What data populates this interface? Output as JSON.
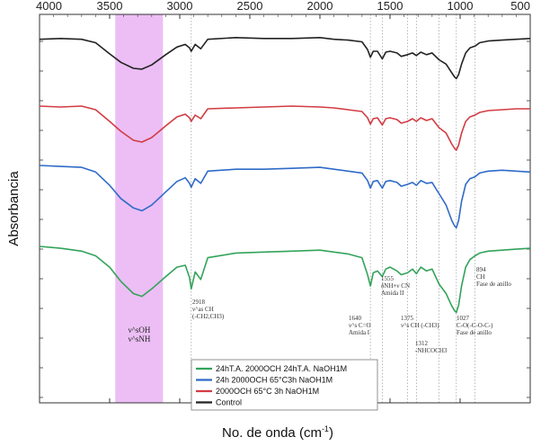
{
  "chart_data": {
    "type": "line",
    "title": "",
    "xlabel": "No. de onda (cm",
    "xlabel_sup": "-1",
    "xlabel_close": ")",
    "ylabel": "Absorbancia",
    "xlim": [
      4000,
      500
    ],
    "x_ticks": [
      "4000",
      "3500",
      "3000",
      "2500",
      "2000",
      "1500",
      "1000",
      "500"
    ],
    "x_tick_values": [
      4000,
      3500,
      3000,
      2500,
      2000,
      1500,
      1000,
      500
    ],
    "highlight_band": {
      "from": 3460,
      "to": 3120,
      "color": "#ecbef5"
    },
    "ref_lines": [
      2918,
      1640,
      1555,
      1375,
      1312,
      1150,
      1027,
      894
    ],
    "series": [
      {
        "name": "Control",
        "color": "#222222",
        "offset": 0.06,
        "points": [
          [
            4000,
            0.06
          ],
          [
            3850,
            0.05
          ],
          [
            3700,
            0.06
          ],
          [
            3600,
            0.1
          ],
          [
            3500,
            0.23
          ],
          [
            3420,
            0.33
          ],
          [
            3330,
            0.4
          ],
          [
            3270,
            0.41
          ],
          [
            3200,
            0.36
          ],
          [
            3100,
            0.24
          ],
          [
            3020,
            0.15
          ],
          [
            2960,
            0.12
          ],
          [
            2930,
            0.16
          ],
          [
            2918,
            0.2
          ],
          [
            2890,
            0.12
          ],
          [
            2850,
            0.17
          ],
          [
            2800,
            0.06
          ],
          [
            2600,
            0.04
          ],
          [
            2400,
            0.05
          ],
          [
            2200,
            0.05
          ],
          [
            2000,
            0.04
          ],
          [
            1900,
            0.06
          ],
          [
            1800,
            0.07
          ],
          [
            1700,
            0.09
          ],
          [
            1660,
            0.18
          ],
          [
            1640,
            0.27
          ],
          [
            1620,
            0.2
          ],
          [
            1590,
            0.2
          ],
          [
            1555,
            0.29
          ],
          [
            1530,
            0.21
          ],
          [
            1500,
            0.2
          ],
          [
            1450,
            0.22
          ],
          [
            1420,
            0.26
          ],
          [
            1375,
            0.24
          ],
          [
            1340,
            0.22
          ],
          [
            1312,
            0.25
          ],
          [
            1280,
            0.21
          ],
          [
            1240,
            0.24
          ],
          [
            1200,
            0.22
          ],
          [
            1150,
            0.3
          ],
          [
            1100,
            0.35
          ],
          [
            1060,
            0.45
          ],
          [
            1040,
            0.5
          ],
          [
            1027,
            0.52
          ],
          [
            1010,
            0.47
          ],
          [
            990,
            0.35
          ],
          [
            960,
            0.22
          ],
          [
            930,
            0.16
          ],
          [
            894,
            0.14
          ],
          [
            860,
            0.1
          ],
          [
            800,
            0.08
          ],
          [
            700,
            0.07
          ],
          [
            600,
            0.06
          ],
          [
            500,
            0.05
          ]
        ]
      },
      {
        "name": "2000OCH 65°C 3h NaOH1M",
        "color": "#d23c43",
        "offset": 0.0,
        "points": [
          [
            4000,
            0.0
          ],
          [
            3850,
            0.01
          ],
          [
            3700,
            0.0
          ],
          [
            3600,
            0.04
          ],
          [
            3500,
            0.17
          ],
          [
            3420,
            0.28
          ],
          [
            3330,
            0.38
          ],
          [
            3270,
            0.4
          ],
          [
            3200,
            0.35
          ],
          [
            3100,
            0.22
          ],
          [
            3020,
            0.12
          ],
          [
            2960,
            0.09
          ],
          [
            2930,
            0.13
          ],
          [
            2918,
            0.17
          ],
          [
            2890,
            0.1
          ],
          [
            2850,
            0.14
          ],
          [
            2800,
            0.03
          ],
          [
            2600,
            0.02
          ],
          [
            2400,
            0.01
          ],
          [
            2200,
            0.0
          ],
          [
            2000,
            0.01
          ],
          [
            1900,
            0.02
          ],
          [
            1800,
            0.04
          ],
          [
            1700,
            0.06
          ],
          [
            1660,
            0.13
          ],
          [
            1640,
            0.2
          ],
          [
            1620,
            0.14
          ],
          [
            1590,
            0.13
          ],
          [
            1555,
            0.21
          ],
          [
            1530,
            0.14
          ],
          [
            1500,
            0.13
          ],
          [
            1450,
            0.15
          ],
          [
            1420,
            0.19
          ],
          [
            1375,
            0.17
          ],
          [
            1340,
            0.14
          ],
          [
            1312,
            0.17
          ],
          [
            1280,
            0.13
          ],
          [
            1240,
            0.16
          ],
          [
            1200,
            0.14
          ],
          [
            1150,
            0.24
          ],
          [
            1100,
            0.3
          ],
          [
            1060,
            0.42
          ],
          [
            1040,
            0.47
          ],
          [
            1027,
            0.49
          ],
          [
            1010,
            0.43
          ],
          [
            990,
            0.3
          ],
          [
            960,
            0.17
          ],
          [
            930,
            0.12
          ],
          [
            894,
            0.1
          ],
          [
            860,
            0.07
          ],
          [
            800,
            0.05
          ],
          [
            700,
            0.04
          ],
          [
            600,
            0.03
          ],
          [
            500,
            0.03
          ]
        ]
      },
      {
        "name": "24h 2000OCH 65°C3h NaOH1M",
        "color": "#2f6bc8",
        "offset": 0.0,
        "points": [
          [
            4000,
            0.0
          ],
          [
            3850,
            0.01
          ],
          [
            3700,
            0.02
          ],
          [
            3600,
            0.07
          ],
          [
            3500,
            0.21
          ],
          [
            3420,
            0.35
          ],
          [
            3330,
            0.45
          ],
          [
            3270,
            0.48
          ],
          [
            3200,
            0.42
          ],
          [
            3100,
            0.28
          ],
          [
            3020,
            0.17
          ],
          [
            2960,
            0.13
          ],
          [
            2930,
            0.19
          ],
          [
            2918,
            0.23
          ],
          [
            2890,
            0.14
          ],
          [
            2850,
            0.19
          ],
          [
            2800,
            0.06
          ],
          [
            2600,
            0.04
          ],
          [
            2400,
            0.04
          ],
          [
            2200,
            0.03
          ],
          [
            2000,
            0.02
          ],
          [
            1900,
            0.04
          ],
          [
            1800,
            0.06
          ],
          [
            1700,
            0.08
          ],
          [
            1660,
            0.16
          ],
          [
            1640,
            0.24
          ],
          [
            1620,
            0.17
          ],
          [
            1590,
            0.16
          ],
          [
            1555,
            0.24
          ],
          [
            1530,
            0.17
          ],
          [
            1500,
            0.16
          ],
          [
            1450,
            0.18
          ],
          [
            1420,
            0.22
          ],
          [
            1375,
            0.2
          ],
          [
            1340,
            0.18
          ],
          [
            1312,
            0.21
          ],
          [
            1280,
            0.16
          ],
          [
            1240,
            0.19
          ],
          [
            1200,
            0.18
          ],
          [
            1150,
            0.3
          ],
          [
            1100,
            0.42
          ],
          [
            1060,
            0.58
          ],
          [
            1040,
            0.64
          ],
          [
            1027,
            0.66
          ],
          [
            1010,
            0.58
          ],
          [
            990,
            0.38
          ],
          [
            960,
            0.2
          ],
          [
            930,
            0.14
          ],
          [
            894,
            0.12
          ],
          [
            860,
            0.08
          ],
          [
            800,
            0.06
          ],
          [
            700,
            0.05
          ],
          [
            600,
            0.06
          ],
          [
            500,
            0.07
          ]
        ]
      },
      {
        "name": "24hT.A. 2000OCH 24hT.A. NaOH1M",
        "color": "#33a35a",
        "offset": 0.0,
        "points": [
          [
            4000,
            0.0
          ],
          [
            3850,
            0.02
          ],
          [
            3700,
            0.05
          ],
          [
            3600,
            0.1
          ],
          [
            3500,
            0.22
          ],
          [
            3420,
            0.37
          ],
          [
            3330,
            0.5
          ],
          [
            3270,
            0.53
          ],
          [
            3200,
            0.45
          ],
          [
            3100,
            0.32
          ],
          [
            3020,
            0.22
          ],
          [
            2960,
            0.2
          ],
          [
            2930,
            0.33
          ],
          [
            2918,
            0.45
          ],
          [
            2890,
            0.27
          ],
          [
            2850,
            0.35
          ],
          [
            2800,
            0.12
          ],
          [
            2600,
            0.07
          ],
          [
            2400,
            0.06
          ],
          [
            2200,
            0.05
          ],
          [
            2000,
            0.04
          ],
          [
            1900,
            0.06
          ],
          [
            1800,
            0.08
          ],
          [
            1700,
            0.12
          ],
          [
            1660,
            0.3
          ],
          [
            1640,
            0.42
          ],
          [
            1620,
            0.28
          ],
          [
            1590,
            0.26
          ],
          [
            1555,
            0.32
          ],
          [
            1530,
            0.24
          ],
          [
            1500,
            0.22
          ],
          [
            1450,
            0.26
          ],
          [
            1420,
            0.3
          ],
          [
            1375,
            0.28
          ],
          [
            1340,
            0.24
          ],
          [
            1312,
            0.29
          ],
          [
            1280,
            0.22
          ],
          [
            1240,
            0.26
          ],
          [
            1200,
            0.24
          ],
          [
            1150,
            0.4
          ],
          [
            1100,
            0.5
          ],
          [
            1060,
            0.63
          ],
          [
            1040,
            0.68
          ],
          [
            1027,
            0.7
          ],
          [
            1010,
            0.62
          ],
          [
            990,
            0.42
          ],
          [
            960,
            0.22
          ],
          [
            930,
            0.14
          ],
          [
            894,
            0.1
          ],
          [
            860,
            0.07
          ],
          [
            800,
            0.05
          ],
          [
            700,
            0.04
          ],
          [
            600,
            0.03
          ],
          [
            500,
            0.02
          ]
        ]
      }
    ],
    "annotations": [
      {
        "x": 3270,
        "lines": [
          "ν^sOH",
          "ν^sNH"
        ]
      },
      {
        "x": 2918,
        "lines": [
          "2918",
          "ν^as CH",
          "(-CH2,CH3)"
        ]
      },
      {
        "x": 1640,
        "lines": [
          "1640",
          "ν^s C=O",
          "Amida I"
        ]
      },
      {
        "x": 1555,
        "lines": [
          "1555",
          "δNH+ν CN",
          "Amida II"
        ]
      },
      {
        "x": 1375,
        "lines": [
          "1375",
          "ν^s CH (-CH3)"
        ]
      },
      {
        "x": 1312,
        "lines": [
          "1312",
          "-NHCOCH3"
        ]
      },
      {
        "x": 1027,
        "lines": [
          "1027",
          "C-O(-C-O-C-)",
          "Fase de anillo"
        ]
      },
      {
        "x": 894,
        "lines": [
          "894",
          "CH",
          "Fase de anillo"
        ]
      }
    ],
    "legend": {
      "placement": "bottom-left",
      "entries": [
        "24hT.A. 2000OCH 24hT.A. NaOH1M",
        "24h 2000OCH 65°C3h NaOH1M",
        "2000OCH 65°C 3h NaOH1M",
        "Control"
      ]
    }
  }
}
